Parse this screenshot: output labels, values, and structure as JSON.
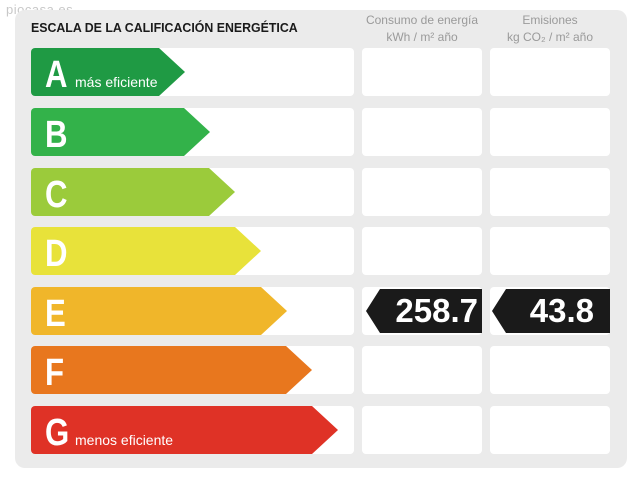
{
  "watermark": "piocasa.es",
  "title": "ESCALA DE LA CALIFICACIÓN ENERGÉTICA",
  "columns": {
    "consumo_line1": "Consumo de energía",
    "consumo_line2": "kWh / m² año",
    "emisiones_line1": "Emisiones",
    "emisiones_line2": "kg CO₂ / m² año"
  },
  "ratings": [
    {
      "letter": "A",
      "desc": "más eficiente",
      "color": "#1f9a44"
    },
    {
      "letter": "B",
      "desc": "",
      "color": "#33b24a"
    },
    {
      "letter": "C",
      "desc": "",
      "color": "#9bcb3b"
    },
    {
      "letter": "D",
      "desc": "",
      "color": "#e8e23a"
    },
    {
      "letter": "E",
      "desc": "",
      "color": "#f0b62a"
    },
    {
      "letter": "F",
      "desc": "",
      "color": "#e8771e"
    },
    {
      "letter": "G",
      "desc": "menos eficiente",
      "color": "#df3226"
    }
  ],
  "current_rating": "E",
  "values": {
    "consumo": "258.7",
    "emisiones": "43.8"
  }
}
